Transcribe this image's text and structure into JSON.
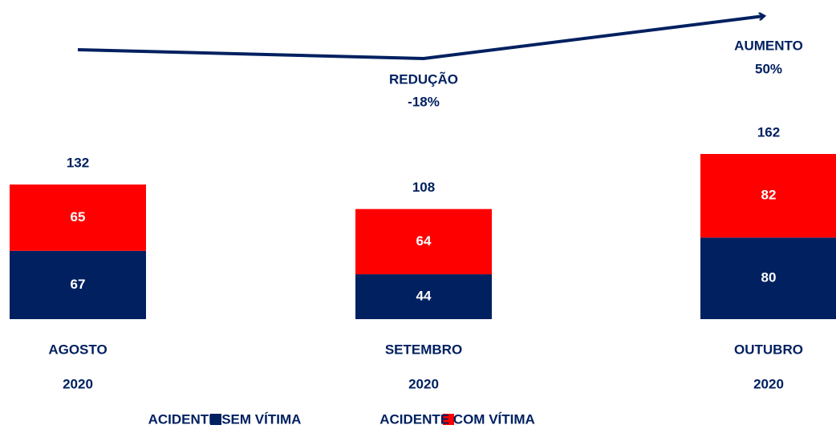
{
  "chart_data": {
    "type": "stacked_bar",
    "categories": [
      [
        "AGOSTO",
        "2020"
      ],
      [
        "SETEMBRO",
        "2020"
      ],
      [
        "OUTUBRO",
        "2020"
      ]
    ],
    "series": [
      {
        "name": "ACIDENTE SEM VÍTIMA",
        "color": "#002060",
        "values": [
          67,
          44,
          80
        ]
      },
      {
        "name": "ACIDENTE COM VÍTIMA",
        "color": "#ff0000",
        "values": [
          65,
          64,
          82
        ]
      }
    ],
    "totals": [
      132,
      108,
      162
    ],
    "annotations": [
      [
        "REDUÇÃO",
        "-18%"
      ],
      [
        "AUMENTO",
        "50%"
      ]
    ],
    "legend": "bottom"
  }
}
